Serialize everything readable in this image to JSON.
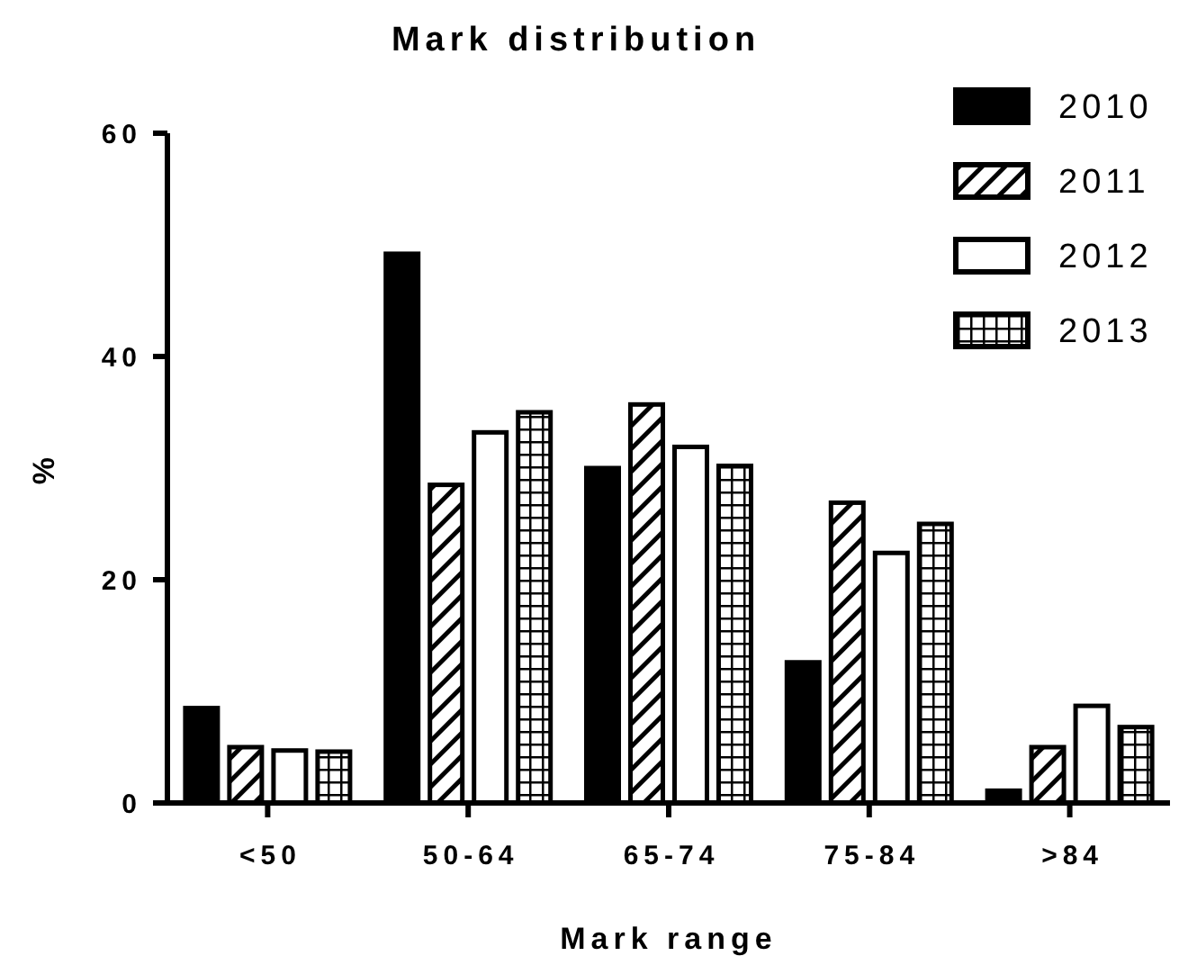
{
  "chart_data": {
    "type": "bar",
    "title": "Mark distribution",
    "xlabel": "Mark range",
    "ylabel": "%",
    "categories": [
      "<50",
      "50-64",
      "65-74",
      "75-84",
      ">84"
    ],
    "series": [
      {
        "name": "2010",
        "color": "#000000",
        "values": [
          8.5,
          49.2,
          30.0,
          12.6,
          1.1
        ]
      },
      {
        "name": "2011",
        "color": "#000000",
        "values": [
          5.0,
          28.5,
          35.7,
          26.9,
          5.0
        ]
      },
      {
        "name": "2012",
        "color": "#000000",
        "values": [
          4.7,
          33.2,
          31.9,
          22.4,
          8.7
        ]
      },
      {
        "name": "2013",
        "color": "#000000",
        "values": [
          4.6,
          35.0,
          30.2,
          25.0,
          6.8
        ]
      }
    ],
    "ylim": [
      0,
      60
    ],
    "yticks": [
      0,
      20,
      40,
      60
    ],
    "grid": false,
    "legend": "top right"
  }
}
